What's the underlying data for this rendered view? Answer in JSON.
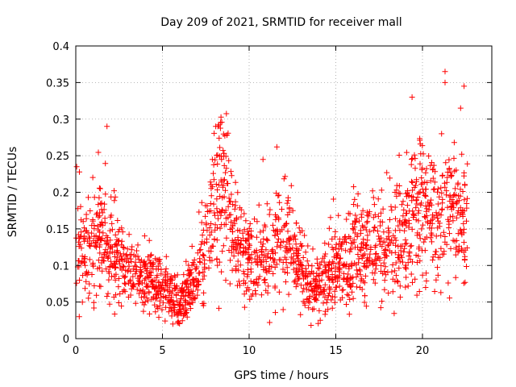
{
  "chart_data": {
    "type": "scatter",
    "title": "Day 209 of 2021, SRMTID for receiver mall",
    "xlabel": "GPS time / hours",
    "ylabel": "SRMTID / TECUs",
    "xlim": [
      0,
      24
    ],
    "ylim": [
      0,
      0.4
    ],
    "xticks": [
      0,
      5,
      10,
      15,
      20
    ],
    "yticks": [
      0,
      0.05,
      0.1,
      0.15,
      0.2,
      0.25,
      0.3,
      0.35,
      0.4
    ],
    "ytick_labels": [
      "0",
      "0.05",
      "0.1",
      "0.15",
      "0.2",
      "0.25",
      "0.3",
      "0.35",
      "0.4"
    ],
    "grid": true,
    "marker": "+",
    "color": "#ff0000",
    "data_range_hours": [
      0,
      22.6
    ],
    "trend": {
      "hours": [
        0,
        1,
        2,
        3,
        4,
        5,
        6,
        7,
        7.5,
        8,
        8.5,
        9,
        9.5,
        10,
        11,
        12,
        13,
        14,
        15,
        16,
        17,
        18,
        19,
        19.5,
        20,
        21,
        22,
        22.6
      ],
      "values": [
        0.12,
        0.13,
        0.13,
        0.09,
        0.08,
        0.07,
        0.05,
        0.08,
        0.13,
        0.19,
        0.2,
        0.16,
        0.12,
        0.1,
        0.11,
        0.14,
        0.09,
        0.07,
        0.1,
        0.12,
        0.12,
        0.13,
        0.14,
        0.16,
        0.18,
        0.16,
        0.17,
        0.16
      ]
    },
    "highlights": [
      {
        "x": 0.05,
        "y": 0.235
      },
      {
        "x": 1.8,
        "y": 0.29
      },
      {
        "x": 8.2,
        "y": 0.29
      },
      {
        "x": 10.8,
        "y": 0.245
      },
      {
        "x": 11.6,
        "y": 0.262
      },
      {
        "x": 19.4,
        "y": 0.33
      },
      {
        "x": 21.1,
        "y": 0.28
      },
      {
        "x": 21.3,
        "y": 0.365
      },
      {
        "x": 21.3,
        "y": 0.35
      },
      {
        "x": 22.4,
        "y": 0.345
      },
      {
        "x": 22.2,
        "y": 0.315
      },
      {
        "x": 14.1,
        "y": 0.025
      },
      {
        "x": 5.6,
        "y": 0.02
      },
      {
        "x": 0.2,
        "y": 0.03
      }
    ]
  }
}
